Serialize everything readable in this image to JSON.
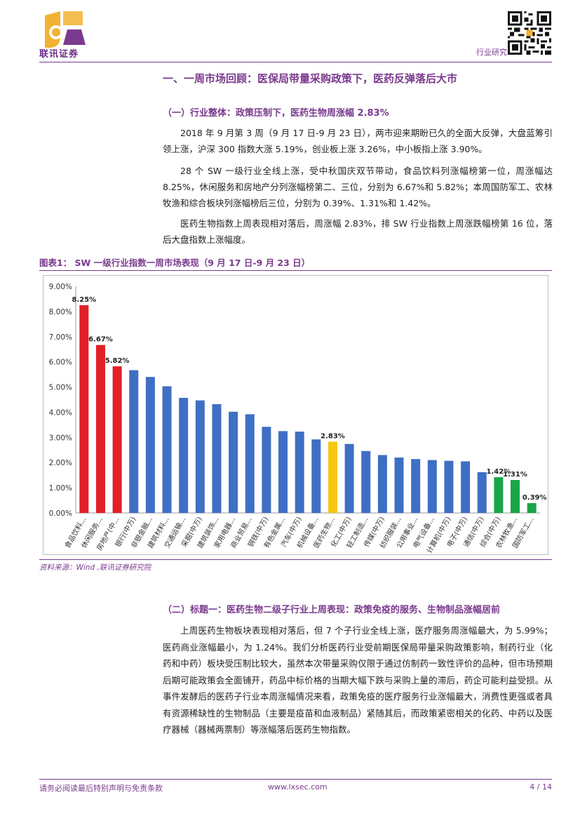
{
  "header": {
    "logo_text": "联讯证券",
    "right_label": "行业研究"
  },
  "section1_title": "一、一周市场回顾：医保局带量采购政策下，医药反弹落后大市",
  "sub1_title": "（一）行业整体：政策压制下，医药生物周涨幅 2.83%",
  "paragraphs": [
    "2018 年 9 月第 3 周（9 月 17 日-9 月 23 日），两市迎来期盼已久的全面大反弹，大盘蓝筹引领上涨，沪深 300 指数大涨 5.19%，创业板上涨 3.26%，中小板指上涨 3.90%。",
    "28 个 SW 一级行业全线上涨，受中秋国庆双节带动，食品饮料列涨幅榜第一位，周涨幅达 8.25%，休闲服务和房地产分列涨幅榜第二、三位，分别为 6.67%和 5.82%；本周国防军工、农林牧渔和综合板块列涨幅榜后三位，分别为 0.39%、1.31%和 1.42%。",
    "医药生物指数上周表现相对落后，周涨幅 2.83%，排 SW 行业指数上周涨跌幅榜第 16 位，落后大盘指数上涨幅度。"
  ],
  "figure_title": "图表1：  SW 一级行业指数一周市场表现（9 月 17 日-9 月 23 日）",
  "source": "资料来源：Wind ,联讯证券研究院",
  "sub2_title": "（二）标题一：医药生物二级子行业上周表现：政策免疫的服务、生物制品涨幅居前",
  "paragraph4": "上周医药生物板块表现相对落后，但 7 个子行业全线上涨，医疗服务周涨幅最大，为 5.99%；医药商业涨幅最小，为 1.24%。我们分析医药行业受前期医保局带量采购政策影响，制药行业（化药和中药）板块受压制比较大，虽然本次带量采购仅限于通过仿制药一致性评价的品种，但市场预期后期可能政策会全面铺开，药品中标价格的当期大幅下跌与采购上量的滞后，药企可能利益受损。从事件发酵后的医药子行业本周涨幅情况来看，政策免疫的医疗服务行业涨幅最大，消费性更强或者具有资源稀缺性的生物制品（主要是疫苗和血液制品）紧随其后，而政策紧密相关的化药、中药以及医疗器械（器械两票制）等涨幅落后医药生物指数。",
  "footer": {
    "left": "请务必阅读最后特别声明与免责条款",
    "center": "www.lxsec.com",
    "right": "4 / 14"
  },
  "chart_data": {
    "type": "bar",
    "title": "",
    "xlabel": "",
    "ylabel": "",
    "ylim": [
      0,
      9
    ],
    "yticks": [
      "0.00%",
      "1.00%",
      "2.00%",
      "3.00%",
      "4.00%",
      "5.00%",
      "6.00%",
      "7.00%",
      "8.00%",
      "9.00%"
    ],
    "categories": [
      "食品饮料...",
      "休闲服务...",
      "房地产(中...",
      "银行(中万)",
      "非银金融...",
      "建筑材料...",
      "交通运输...",
      "采掘(中万)",
      "建筑装饰...",
      "家用电器...",
      "商业贸易...",
      "钢铁(中万)",
      "有色金属...",
      "汽车(中万)",
      "机械设备...",
      "医药生物...",
      "化工(中万)",
      "轻工制造...",
      "传媒(中万)",
      "纺织服装...",
      "公用事业...",
      "电气设备...",
      "计算机(中万)",
      "电子(中万)",
      "通信(中万)",
      "综合(中万)",
      "农林牧渔...",
      "国防军工..."
    ],
    "values": [
      8.25,
      6.67,
      5.82,
      5.67,
      5.4,
      5.03,
      4.57,
      4.47,
      4.32,
      4.02,
      3.92,
      3.42,
      3.25,
      3.23,
      2.92,
      2.83,
      2.74,
      2.46,
      2.3,
      2.2,
      2.14,
      2.1,
      2.07,
      2.05,
      1.62,
      1.42,
      1.31,
      0.39
    ],
    "colors": [
      "#e21f26",
      "#e21f26",
      "#e21f26",
      "#3f6fc4",
      "#3f6fc4",
      "#3f6fc4",
      "#3f6fc4",
      "#3f6fc4",
      "#3f6fc4",
      "#3f6fc4",
      "#3f6fc4",
      "#3f6fc4",
      "#3f6fc4",
      "#3f6fc4",
      "#3f6fc4",
      "#f6c710",
      "#3f6fc4",
      "#3f6fc4",
      "#3f6fc4",
      "#3f6fc4",
      "#3f6fc4",
      "#3f6fc4",
      "#3f6fc4",
      "#3f6fc4",
      "#3f6fc4",
      "#19a648",
      "#19a648",
      "#19a648"
    ],
    "data_labels": [
      {
        "index": 0,
        "text": "8.25%"
      },
      {
        "index": 1,
        "text": "6.67%"
      },
      {
        "index": 2,
        "text": "5.82%"
      },
      {
        "index": 15,
        "text": "2.83%"
      },
      {
        "index": 25,
        "text": "1.42%"
      },
      {
        "index": 26,
        "text": "1.31%"
      },
      {
        "index": 27,
        "text": "0.39%"
      }
    ]
  }
}
